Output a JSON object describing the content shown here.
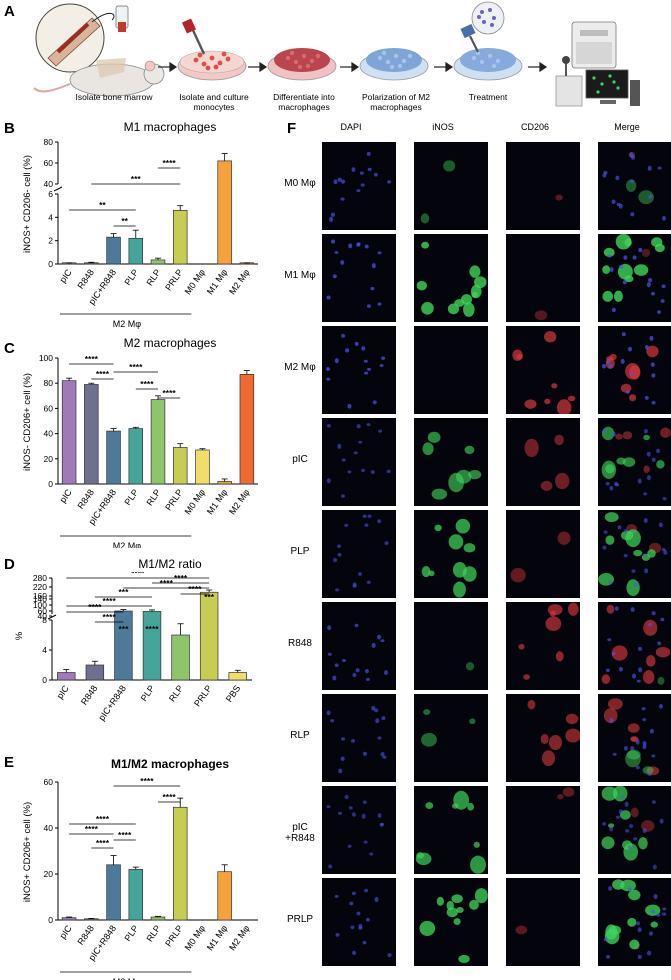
{
  "panels": {
    "A": "A",
    "B": "B",
    "C": "C",
    "D": "D",
    "E": "E",
    "F": "F"
  },
  "workflow": {
    "steps": [
      "Isolate bone marrow",
      "Isolate and culture monocytes",
      "Differentiate into macrophages",
      "Polarization of M2 macrophages",
      "Treatment"
    ]
  },
  "colors": {
    "pIC": "#a07ab8",
    "R848": "#6f6f8f",
    "pIC+R848": "#4c7a98",
    "PLP": "#46a59a",
    "RLP": "#8fc46c",
    "PRLP": "#c7cc55",
    "M0": "#f1de6a",
    "M1": "#f3a23c",
    "M2": "#f06a2f",
    "PBS": "#f1de6a"
  },
  "chart_data": [
    {
      "type": "bar",
      "title": "M1 macrophages",
      "ylabel": "iNOS+ CD206- cell (%)",
      "categories": [
        "pIC",
        "R848",
        "pIC+R848",
        "PLP",
        "RLP",
        "PRLP",
        "M0 Mφ",
        "M1 Mφ",
        "M2 Mφ"
      ],
      "values": [
        0.05,
        0.1,
        2.3,
        2.2,
        0.35,
        4.6,
        0,
        62,
        0.05
      ],
      "errors": [
        0.05,
        0.05,
        0.3,
        0.7,
        0.15,
        0.4,
        0,
        7,
        0.05
      ],
      "y_ticks": [
        "0",
        "2",
        "4",
        "6",
        "40",
        "60",
        "80"
      ],
      "broken_axis": true,
      "significance": [
        "**",
        "**",
        "***",
        "****"
      ],
      "group_label": "M2 Mφ"
    },
    {
      "type": "bar",
      "title": "M2 macrophages",
      "ylabel": "iNOS- CD206+ cell (%)",
      "categories": [
        "pIC",
        "R848",
        "pIC+R848",
        "PLP",
        "RLP",
        "PRLP",
        "M0 Mφ",
        "M1 Mφ",
        "M2 Mφ"
      ],
      "values": [
        82,
        79,
        42,
        44,
        67,
        29,
        27,
        2,
        87
      ],
      "errors": [
        2,
        1,
        2,
        1,
        3,
        3,
        1,
        2,
        3
      ],
      "y_ticks": [
        "0",
        "20",
        "40",
        "60",
        "80",
        "100"
      ],
      "ylim": [
        0,
        100
      ],
      "significance": [
        "****",
        "****",
        "****",
        "****",
        "****"
      ],
      "group_label": "M2 Mφ"
    },
    {
      "type": "bar",
      "title": "M1/M2 ratio",
      "ylabel": "%",
      "categories": [
        "pIC",
        "R848",
        "pIC+R848",
        "PLP",
        "RLP",
        "PRLP",
        "PBS"
      ],
      "values": [
        1.0,
        2.0,
        60,
        57,
        6.0,
        185,
        1.0
      ],
      "errors": [
        0.4,
        0.5,
        10,
        10,
        1.5,
        15,
        0.3
      ],
      "y_ticks": [
        "0",
        "4",
        "8",
        "40",
        "60",
        "100",
        "140",
        "160",
        "220",
        "280"
      ],
      "broken_axis": true,
      "significance": [
        "****",
        "****",
        "****",
        "***",
        "***",
        "****",
        "****",
        "****",
        "****",
        "***",
        "****"
      ]
    },
    {
      "type": "bar",
      "title": "M1/M2 macrophages",
      "ylabel": "iNOS+ CD206+ cell (%)",
      "categories": [
        "pIC",
        "R848",
        "pIC+R848",
        "PLP",
        "RLP",
        "PRLP",
        "M0 Mφ",
        "M1 Mφ",
        "M2 Mφ"
      ],
      "values": [
        1,
        0.5,
        24,
        22,
        1.3,
        49,
        0,
        21,
        0
      ],
      "errors": [
        0.3,
        0.2,
        4,
        1,
        0.3,
        4,
        0,
        3,
        0
      ],
      "y_ticks": [
        "0",
        "20",
        "40",
        "60"
      ],
      "ylim": [
        0,
        60
      ],
      "significance": [
        "****",
        "****",
        "****",
        "****",
        "****",
        "****"
      ],
      "group_label": "M2 Mφ"
    }
  ],
  "microscopy": {
    "columns": [
      "DAPI",
      "iNOS",
      "CD206",
      "Merge"
    ],
    "rows": [
      "M0 Mφ",
      "M1 Mφ",
      "M2 Mφ",
      "pIC",
      "PLP",
      "R848",
      "RLP",
      "pIC +R848",
      "PRLP"
    ]
  }
}
